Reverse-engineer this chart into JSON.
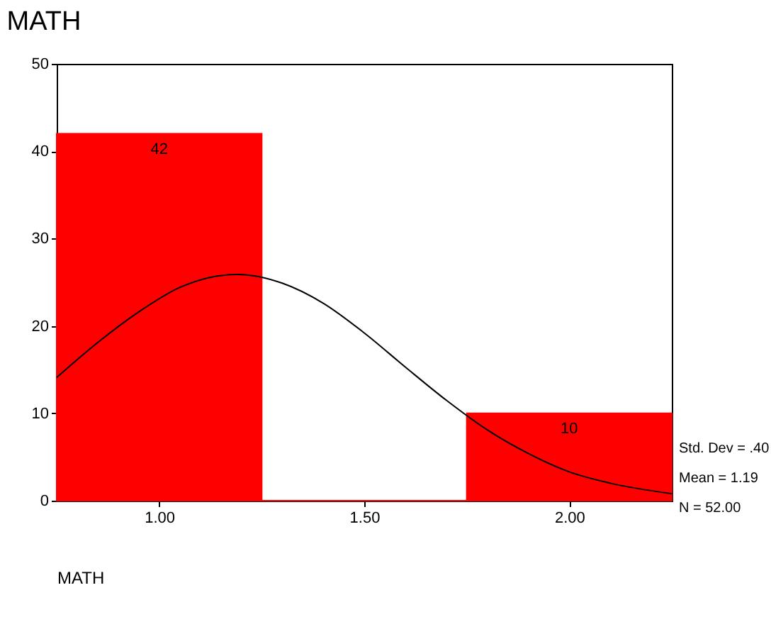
{
  "chart_data": {
    "type": "histogram",
    "title": "MATH",
    "xlabel": "MATH",
    "bins": [
      0.75,
      1.25,
      1.75,
      2.25
    ],
    "series": [
      {
        "color": "#ff0000",
        "values": [
          42,
          0,
          10
        ],
        "value_labels": [
          "42",
          null,
          "10"
        ]
      },
      {
        "type": "line",
        "color": "#000000",
        "x": [
          0.75,
          0.85,
          0.95,
          1.05,
          1.19,
          1.3,
          1.4,
          1.5,
          1.6,
          1.7,
          1.8,
          1.9,
          2.0,
          2.1,
          2.25
        ],
        "values": [
          14.1,
          18.1,
          21.6,
          24.4,
          25.9,
          24.9,
          22.6,
          19.2,
          15.3,
          11.5,
          8.1,
          5.4,
          3.3,
          2.0,
          0.8
        ]
      }
    ],
    "xlim": [
      0.75,
      2.25
    ],
    "xticks": [
      {
        "value": 1,
        "label": "1.00"
      },
      {
        "value": 1.5,
        "label": "1.50"
      },
      {
        "value": 2,
        "label": "2.00"
      }
    ],
    "ylim": [
      0,
      50
    ],
    "yticks": [
      0,
      10,
      20,
      30,
      40,
      50
    ],
    "annotations": [
      "Std. Dev = .40",
      "Mean = 1.19",
      "N = 52.00"
    ]
  }
}
